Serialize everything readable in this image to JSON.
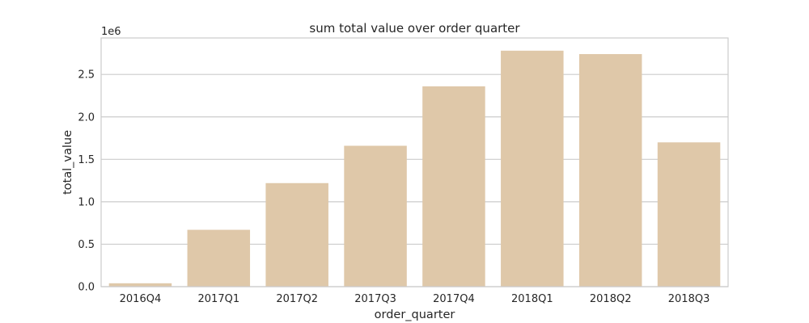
{
  "chart_data": {
    "type": "bar",
    "title": "sum total value over order quarter",
    "xlabel": "order_quarter",
    "ylabel": "total_value",
    "y_offset_label": "1e6",
    "categories": [
      "2016Q4",
      "2017Q1",
      "2017Q2",
      "2017Q3",
      "2017Q4",
      "2018Q1",
      "2018Q2",
      "2018Q3"
    ],
    "values": [
      0.04,
      0.67,
      1.22,
      1.66,
      2.36,
      2.78,
      2.74,
      1.7
    ],
    "value_scale": 1000000,
    "ylim": [
      0,
      2.93
    ],
    "yticks": [
      0.0,
      0.5,
      1.0,
      1.5,
      2.0,
      2.5
    ],
    "ytick_labels": [
      "0.0",
      "0.5",
      "1.0",
      "1.5",
      "2.0",
      "2.5"
    ],
    "grid": true,
    "legend": "none",
    "bar_color": "#dfc8a9",
    "grid_color": "#cccccc",
    "frame_color": "#cccccc",
    "text_color": "#262626"
  }
}
